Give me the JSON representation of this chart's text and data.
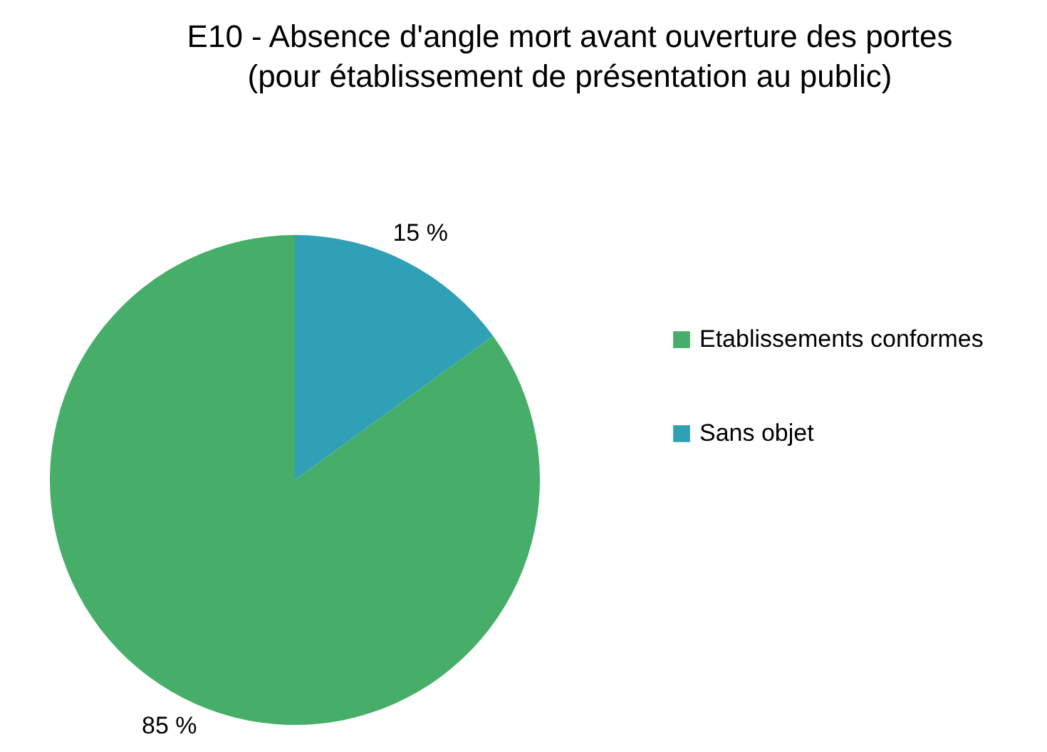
{
  "chart_data": {
    "type": "pie",
    "title": "E10 - Absence d'angle mort avant ouverture des portes\n(pour établissement de présentation au public)",
    "categories": [
      "Etablissements conformes",
      "Sans objet"
    ],
    "values": [
      85,
      15
    ],
    "colors": [
      "#47ae6a",
      "#2fa0b5"
    ],
    "value_labels": [
      "85 %",
      "15 %"
    ],
    "legend": "right"
  }
}
